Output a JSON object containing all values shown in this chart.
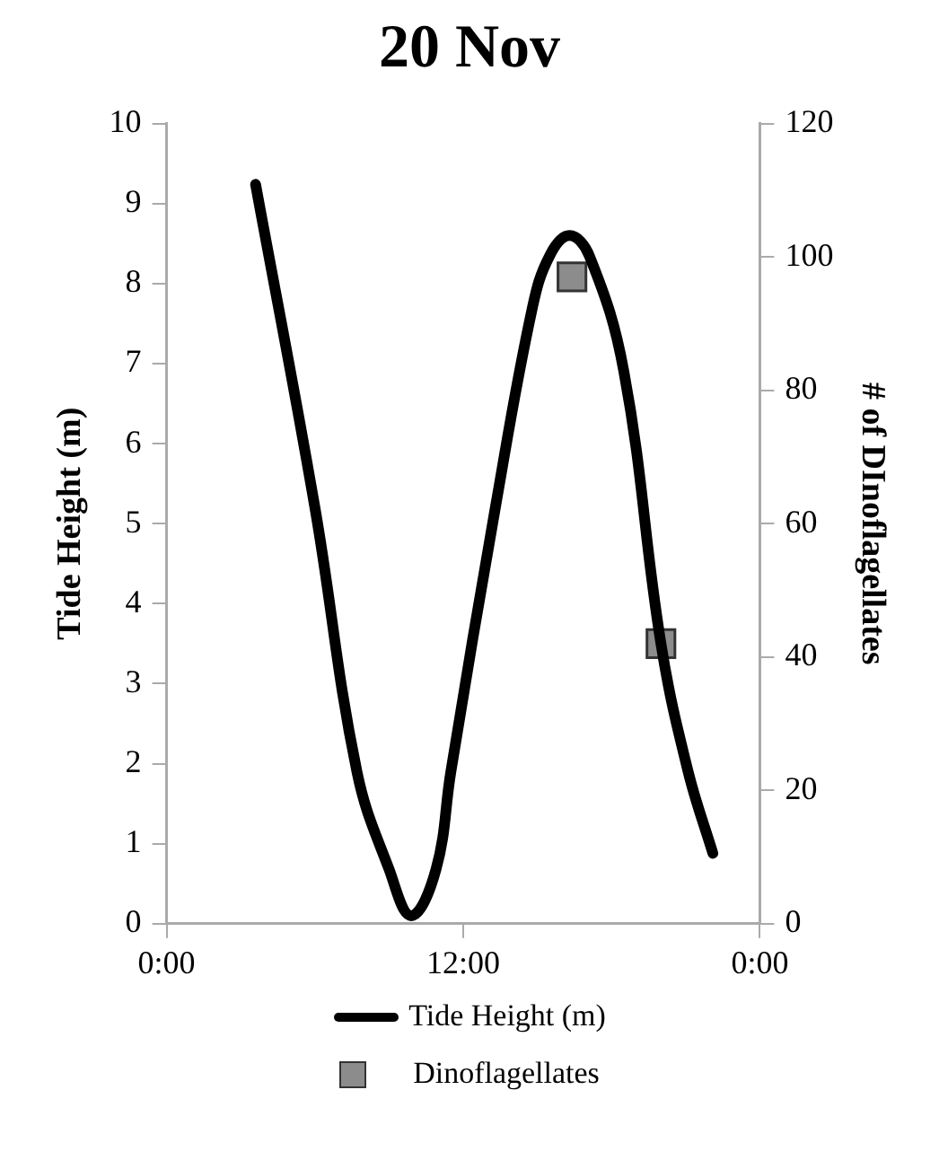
{
  "chart_data": {
    "type": "line",
    "title": "20 Nov",
    "ylabel": "Tide Height (m)",
    "y2label": "# of DInoflagellates",
    "xlim": [
      0,
      24
    ],
    "xticks": [
      {
        "value": 0,
        "label": "0:00"
      },
      {
        "value": 12,
        "label": "12:00"
      },
      {
        "value": 24,
        "label": "0:00"
      }
    ],
    "ylim": [
      0,
      10
    ],
    "yticks": [
      0,
      1,
      2,
      3,
      4,
      5,
      6,
      7,
      8,
      9,
      10
    ],
    "y2lim": [
      0,
      120
    ],
    "y2ticks": [
      0,
      20,
      40,
      60,
      80,
      100,
      120
    ],
    "grid": false,
    "legend": "bottom",
    "series": [
      {
        "name": "Tide Height (m)",
        "color": "#000000",
        "marker": "none",
        "line_style": "solid",
        "x": [
          3.6,
          6.0,
          7.7,
          9.0,
          9.9,
          10.9,
          11.5,
          13.3,
          14.8,
          15.5,
          16.3,
          17.1,
          18.5,
          20.0,
          21.1,
          22.1
        ],
        "values": [
          9.24,
          5.2,
          1.9,
          0.68,
          0.1,
          0.68,
          1.9,
          5.2,
          7.7,
          8.35,
          8.6,
          8.35,
          6.9,
          3.5,
          1.9,
          0.88
        ]
      },
      {
        "name": "Dinoflagellates",
        "type": "scatter",
        "axis": "y2",
        "color": "#8c8c8c",
        "marker": "square",
        "x": [
          16.4,
          20.0
        ],
        "values": [
          97,
          42
        ]
      }
    ]
  }
}
